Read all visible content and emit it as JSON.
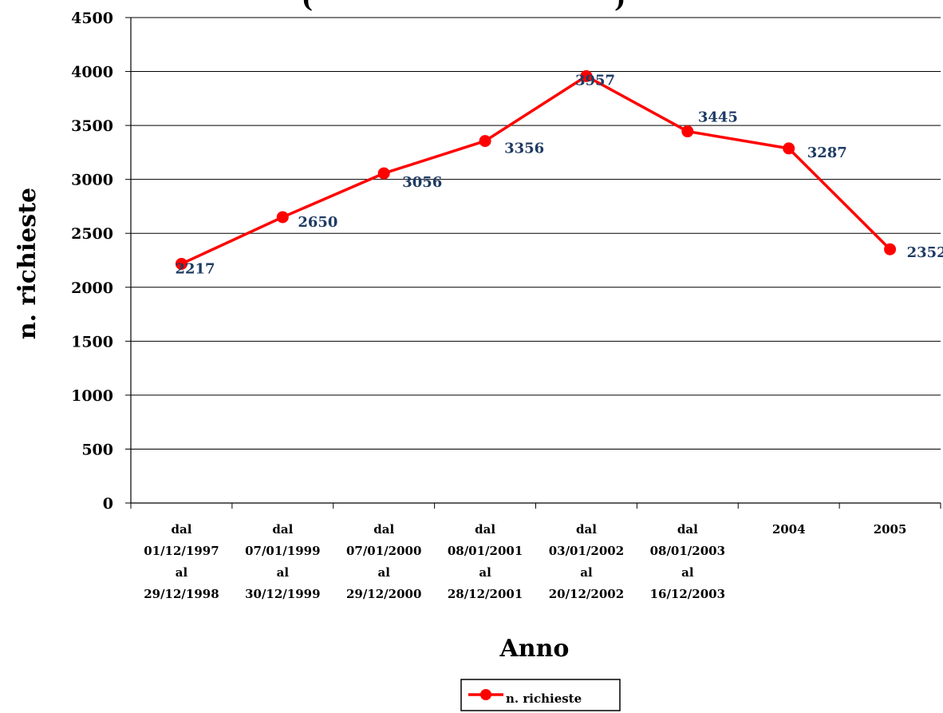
{
  "chart_data": {
    "type": "line",
    "title_fragment": "(",
    "title_fragment_end": ")",
    "xlabel": "Anno",
    "ylabel": "n. richieste",
    "ylim": [
      0,
      4500
    ],
    "ytick_step": 500,
    "yticks": [
      "0",
      "500",
      "1000",
      "1500",
      "2000",
      "2500",
      "3000",
      "3500",
      "4000",
      "4500"
    ],
    "grid": true,
    "legend_position": "bottom-center",
    "colors": {
      "line": "#ff0000",
      "labels": "#1f3b63",
      "grid": "#000000"
    },
    "categories": [
      [
        "dal",
        "01/12/1997",
        "al",
        "29/12/1998"
      ],
      [
        "dal",
        "07/01/1999",
        "al",
        "30/12/1999"
      ],
      [
        "dal",
        "07/01/2000",
        "al",
        "29/12/2000"
      ],
      [
        "dal",
        "08/01/2001",
        "al",
        "28/12/2001"
      ],
      [
        "dal",
        "03/01/2002",
        "al",
        "20/12/2002"
      ],
      [
        "dal",
        "08/01/2003",
        "al",
        "16/12/2003"
      ],
      [
        "2004"
      ],
      [
        "2005"
      ]
    ],
    "series": [
      {
        "name": "n. richieste",
        "values": [
          2217,
          2650,
          3056,
          3356,
          3957,
          3445,
          3287,
          2352
        ],
        "labels": [
          "2217",
          "2650",
          "3056",
          "3356",
          "3957",
          "3445",
          "3287",
          "2352"
        ]
      }
    ]
  }
}
